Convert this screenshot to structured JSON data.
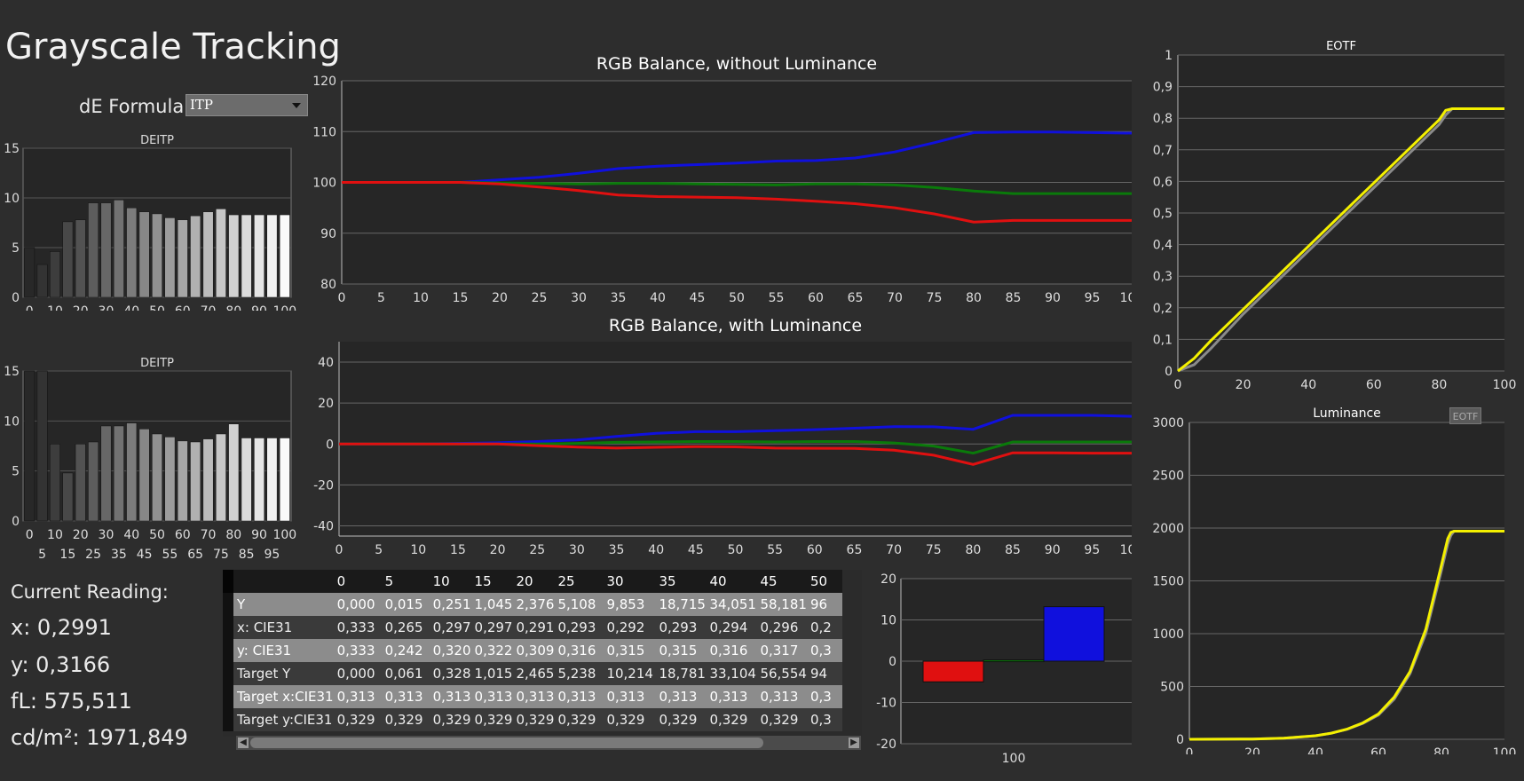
{
  "title": "Grayscale Tracking",
  "de_formula": {
    "label": "dE Formula:",
    "value": "ITP"
  },
  "current_reading": {
    "label": "Current Reading:",
    "x": "x: 0,2991",
    "y": "y: 0,3166",
    "fl": "fL: 575,511",
    "cdm2": "cd/m²: 1971,849"
  },
  "eotf_button_label": "EOTF",
  "table": {
    "columns": [
      "0",
      "5",
      "10",
      "15",
      "20",
      "25",
      "30",
      "35",
      "40",
      "45",
      "50"
    ],
    "rows": [
      {
        "label": "Y",
        "values": [
          "0,000",
          "0,015",
          "0,251",
          "1,045",
          "2,376",
          "5,108",
          "9,853",
          "18,715",
          "34,051",
          "58,181",
          "96"
        ]
      },
      {
        "label": "x: CIE31",
        "values": [
          "0,333",
          "0,265",
          "0,297",
          "0,297",
          "0,291",
          "0,293",
          "0,292",
          "0,293",
          "0,294",
          "0,296",
          "0,2"
        ]
      },
      {
        "label": "y: CIE31",
        "values": [
          "0,333",
          "0,242",
          "0,320",
          "0,322",
          "0,309",
          "0,316",
          "0,315",
          "0,315",
          "0,316",
          "0,317",
          "0,3"
        ]
      },
      {
        "label": "Target Y",
        "values": [
          "0,000",
          "0,061",
          "0,328",
          "1,015",
          "2,465",
          "5,238",
          "10,214",
          "18,781",
          "33,104",
          "56,554",
          "94"
        ]
      },
      {
        "label": "Target x:CIE31",
        "values": [
          "0,313",
          "0,313",
          "0,313",
          "0,313",
          "0,313",
          "0,313",
          "0,313",
          "0,313",
          "0,313",
          "0,313",
          "0,3"
        ]
      },
      {
        "label": "Target y:CIE31",
        "values": [
          "0,329",
          "0,329",
          "0,329",
          "0,329",
          "0,329",
          "0,329",
          "0,329",
          "0,329",
          "0,329",
          "0,329",
          "0,3"
        ]
      }
    ]
  },
  "chart_data": [
    {
      "id": "deitp1",
      "type": "bar",
      "title": "DEITP",
      "categories": [
        "0",
        "5",
        "10",
        "15",
        "20",
        "25",
        "30",
        "35",
        "40",
        "45",
        "50",
        "55",
        "60",
        "65",
        "70",
        "75",
        "80",
        "85",
        "90",
        "95",
        "100"
      ],
      "values": [
        5,
        3.3,
        4.6,
        7.6,
        7.8,
        9.5,
        9.5,
        9.8,
        9,
        8.6,
        8.4,
        8,
        7.8,
        8.2,
        8.6,
        8.9,
        8.3,
        8.3,
        8.3,
        8.3,
        8.3
      ],
      "ylim": [
        0,
        15
      ],
      "yticks": [
        0,
        5,
        10,
        15
      ],
      "xticks_top": [
        "0",
        "10",
        "20",
        "30",
        "40",
        "50",
        "60",
        "70",
        "80",
        "90",
        "100"
      ],
      "xticks_bottom": [
        "5",
        "15",
        "25",
        "35",
        "45",
        "55",
        "65",
        "75",
        "85",
        "95"
      ]
    },
    {
      "id": "deitp2",
      "type": "bar",
      "title": "DEITP",
      "categories": [
        "0",
        "5",
        "10",
        "15",
        "20",
        "25",
        "30",
        "35",
        "40",
        "45",
        "50",
        "55",
        "60",
        "65",
        "70",
        "75",
        "80",
        "85",
        "90",
        "95",
        "100"
      ],
      "values": [
        15,
        15,
        7.7,
        4.8,
        7.7,
        7.9,
        9.5,
        9.5,
        9.8,
        9.2,
        8.7,
        8.4,
        8,
        7.9,
        8.2,
        8.7,
        9.7,
        8.3,
        8.3,
        8.3,
        8.3
      ],
      "ylim": [
        0,
        15
      ],
      "yticks": [
        0,
        5,
        10,
        15
      ],
      "xticks_top": [
        "0",
        "10",
        "20",
        "30",
        "40",
        "50",
        "60",
        "70",
        "80",
        "90",
        "100"
      ],
      "xticks_bottom": [
        "5",
        "15",
        "25",
        "35",
        "45",
        "55",
        "65",
        "75",
        "85",
        "95"
      ]
    },
    {
      "id": "rgb1",
      "type": "line",
      "title": "RGB Balance, without Luminance",
      "x": [
        0,
        5,
        10,
        15,
        20,
        25,
        30,
        35,
        40,
        45,
        50,
        55,
        60,
        65,
        70,
        75,
        80,
        85,
        90,
        95,
        100
      ],
      "series": [
        {
          "color": "#1010dd",
          "values": [
            100,
            100,
            100,
            100,
            100.5,
            101,
            101.8,
            102.7,
            103.2,
            103.5,
            103.8,
            104.2,
            104.3,
            104.8,
            106,
            107.8,
            109.8,
            109.9,
            109.9,
            109.8,
            109.7
          ]
        },
        {
          "color": "#0a7a0a",
          "values": [
            100,
            100,
            100,
            100,
            99.9,
            99.8,
            99.7,
            99.8,
            99.8,
            99.7,
            99.6,
            99.5,
            99.7,
            99.7,
            99.5,
            99,
            98.3,
            97.8,
            97.8,
            97.8,
            97.8
          ]
        },
        {
          "color": "#e01010",
          "values": [
            100,
            100,
            100,
            100,
            99.7,
            99.1,
            98.4,
            97.5,
            97.2,
            97.1,
            97,
            96.7,
            96.3,
            95.8,
            95,
            93.8,
            92.2,
            92.5,
            92.5,
            92.5,
            92.5
          ]
        }
      ],
      "ylim": [
        80,
        120
      ],
      "yticks": [
        80,
        90,
        100,
        110,
        120
      ],
      "xticks": [
        0,
        5,
        10,
        15,
        20,
        25,
        30,
        35,
        40,
        45,
        50,
        55,
        60,
        65,
        70,
        75,
        80,
        85,
        90,
        95,
        100
      ]
    },
    {
      "id": "rgb2",
      "type": "line",
      "title": "RGB Balance, with Luminance",
      "x": [
        0,
        5,
        10,
        15,
        20,
        25,
        30,
        35,
        40,
        45,
        50,
        55,
        60,
        65,
        70,
        75,
        80,
        85,
        90,
        95,
        100
      ],
      "series": [
        {
          "color": "#1010dd",
          "values": [
            0,
            0,
            0,
            0.3,
            0.6,
            1.2,
            2,
            3.7,
            5.2,
            6,
            6,
            6.5,
            7,
            7.7,
            8.5,
            8.4,
            7.2,
            14,
            14,
            14,
            13.5
          ]
        },
        {
          "color": "#0a7a0a",
          "values": [
            0,
            0,
            0,
            0,
            0,
            0,
            0.3,
            0.8,
            1,
            1.2,
            1.2,
            1,
            1.2,
            1.2,
            0.5,
            -1,
            -4.5,
            1,
            1,
            1,
            1
          ]
        },
        {
          "color": "#e01010",
          "values": [
            0,
            0,
            0,
            0,
            0,
            -0.8,
            -1.5,
            -2,
            -1.6,
            -1.3,
            -1.4,
            -2,
            -2.1,
            -2.2,
            -3,
            -5.5,
            -10,
            -4.3,
            -4.3,
            -4.5,
            -4.5
          ]
        }
      ],
      "ylim": [
        -45,
        50
      ],
      "yticks": [
        -40,
        -20,
        0,
        20,
        40
      ],
      "xticks": [
        0,
        5,
        10,
        15,
        20,
        25,
        30,
        35,
        40,
        45,
        50,
        55,
        60,
        65,
        70,
        75,
        80,
        85,
        90,
        95,
        100
      ]
    },
    {
      "id": "rgbbar",
      "type": "bar",
      "title": "",
      "categories": [
        "100"
      ],
      "series": [
        {
          "color": "#e01010",
          "values": [
            -5
          ]
        },
        {
          "color": "#0a7a0a",
          "values": [
            0.3
          ]
        },
        {
          "color": "#1010dd",
          "values": [
            13.2
          ]
        }
      ],
      "ylim": [
        -20,
        20
      ],
      "yticks": [
        -20,
        -10,
        0,
        10,
        20
      ]
    },
    {
      "id": "eotf",
      "type": "line",
      "title": "EOTF",
      "x": [
        0,
        5,
        10,
        20,
        30,
        40,
        50,
        60,
        70,
        80,
        82,
        84,
        100
      ],
      "series": [
        {
          "name": "target",
          "color": "#8a8a8a",
          "values": [
            0,
            0.02,
            0.07,
            0.18,
            0.28,
            0.38,
            0.48,
            0.58,
            0.68,
            0.78,
            0.81,
            0.83,
            0.83
          ]
        },
        {
          "name": "measured",
          "color": "#f4f000",
          "values": [
            0,
            0.04,
            0.095,
            0.195,
            0.295,
            0.395,
            0.495,
            0.595,
            0.695,
            0.795,
            0.825,
            0.83,
            0.83
          ]
        }
      ],
      "ylim": [
        0,
        1
      ],
      "yticks": [
        "0",
        "0,1",
        "0,2",
        "0,3",
        "0,4",
        "0,5",
        "0,6",
        "0,7",
        "0,8",
        "0,9",
        "1"
      ],
      "xticks": [
        0,
        20,
        40,
        60,
        80,
        100
      ]
    },
    {
      "id": "lum",
      "type": "line",
      "title": "Luminance",
      "x": [
        0,
        20,
        30,
        40,
        45,
        50,
        55,
        60,
        65,
        70,
        75,
        80,
        82,
        83,
        84,
        100
      ],
      "series": [
        {
          "name": "target",
          "color": "#8a8a8a",
          "values": [
            0,
            2.5,
            10,
            33,
            57,
            94,
            150,
            230,
            380,
            620,
            1000,
            1600,
            1850,
            1930,
            1971,
            1971
          ]
        },
        {
          "name": "measured",
          "color": "#f4f000",
          "values": [
            0,
            2.4,
            9.8,
            34,
            58,
            96,
            155,
            240,
            400,
            640,
            1040,
            1650,
            1900,
            1960,
            1971,
            1971
          ]
        }
      ],
      "ylim": [
        0,
        3000
      ],
      "yticks": [
        0,
        500,
        1000,
        1500,
        2000,
        2500,
        3000
      ],
      "xticks": [
        0,
        20,
        40,
        60,
        80,
        100
      ]
    }
  ]
}
